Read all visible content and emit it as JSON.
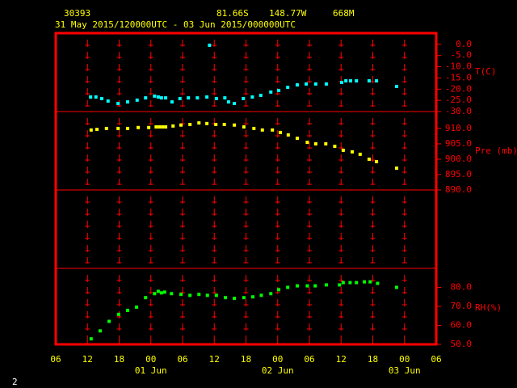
{
  "header": {
    "station": "30393",
    "lat": "81.66S",
    "lon": "148.77W",
    "elev": "668M",
    "period": "31 May 2015/120000UTC - 03 Jun 2015/000000UTC"
  },
  "page_number": "2",
  "x_axis": {
    "xlim": [
      6,
      78
    ],
    "xticks": [
      {
        "value": 6,
        "label": "06"
      },
      {
        "value": 12,
        "label": "12"
      },
      {
        "value": 18,
        "label": "18"
      },
      {
        "value": 24,
        "label": "00"
      },
      {
        "value": 30,
        "label": "06"
      },
      {
        "value": 36,
        "label": "12"
      },
      {
        "value": 42,
        "label": "18"
      },
      {
        "value": 48,
        "label": "00"
      },
      {
        "value": 54,
        "label": "06"
      },
      {
        "value": 60,
        "label": "12"
      },
      {
        "value": 66,
        "label": "18"
      },
      {
        "value": 72,
        "label": "00"
      },
      {
        "value": 78,
        "label": "06"
      }
    ],
    "day_ticks": [
      {
        "value": 24,
        "label": "01 Jun"
      },
      {
        "value": 48,
        "label": "02 Jun"
      },
      {
        "value": 72,
        "label": "03 Jun"
      }
    ]
  },
  "chart_data": [
    {
      "type": "scatter",
      "ylabel": "T(C)",
      "color": "#00ffff",
      "x": [
        12.6,
        13.6,
        14.7,
        15.9,
        17.8,
        19.6,
        21.4,
        23.0,
        24.7,
        25.4,
        26.0,
        26.8,
        28.0,
        29.5,
        31.1,
        32.8,
        34.6,
        35.1,
        36.4,
        38.0,
        38.7,
        39.8,
        41.5,
        43.2,
        44.8,
        46.7,
        48.2,
        49.9,
        51.7,
        53.4,
        55.2,
        57.2,
        60.1,
        60.9,
        61.8,
        62.9,
        65.3,
        66.7,
        70.5
      ],
      "values": [
        -23.5,
        -23.5,
        -24.2,
        -25.3,
        -26.4,
        -25.7,
        -24.9,
        -23.9,
        -23.1,
        -23.5,
        -23.9,
        -23.9,
        -25.7,
        -24.2,
        -23.9,
        -23.9,
        -23.5,
        -0.4,
        -24.2,
        -23.9,
        -25.7,
        -26.4,
        -24.2,
        -23.5,
        -22.8,
        -21.3,
        -20.6,
        -19.2,
        -18.1,
        -17.7,
        -17.7,
        -17.7,
        -17.0,
        -16.3,
        -16.3,
        -16.3,
        -16.3,
        -16.3,
        -18.8
      ],
      "ylim": [
        -30,
        5
      ],
      "yticks": [
        {
          "value": 0,
          "label": "0.0"
        },
        {
          "value": -5,
          "label": "-5.0"
        },
        {
          "value": -10,
          "label": "-10.0"
        },
        {
          "value": -15,
          "label": "-15.0"
        },
        {
          "value": -20,
          "label": "-20.0"
        },
        {
          "value": -25,
          "label": "-25.0"
        },
        {
          "value": -30,
          "label": "-30.0"
        }
      ]
    },
    {
      "type": "scatter",
      "ylabel": "Pre (mb)",
      "color": "#ffff00",
      "x": [
        12.7,
        13.8,
        15.6,
        17.8,
        19.6,
        21.6,
        23.6,
        25.0,
        25.6,
        26.2,
        26.8,
        28.2,
        29.7,
        31.4,
        33.1,
        34.6,
        36.3,
        37.9,
        39.8,
        41.6,
        43.5,
        45.1,
        47.0,
        48.5,
        50.0,
        51.7,
        53.6,
        55.2,
        57.1,
        58.8,
        60.4,
        62.1,
        63.6,
        65.3,
        66.7,
        70.5
      ],
      "values": [
        909.5,
        909.7,
        910.0,
        910.0,
        910.0,
        910.3,
        910.3,
        910.5,
        910.5,
        910.5,
        910.5,
        910.8,
        911.1,
        911.3,
        911.8,
        911.6,
        911.3,
        911.3,
        911.1,
        910.5,
        910.0,
        909.5,
        909.5,
        908.7,
        907.9,
        906.8,
        905.5,
        905.0,
        905.0,
        904.2,
        902.9,
        902.4,
        901.6,
        900.0,
        899.2,
        897.1
      ],
      "ylim": [
        890,
        915.5
      ],
      "yticks": [
        {
          "value": 910,
          "label": "910.0"
        },
        {
          "value": 905,
          "label": "905.0"
        },
        {
          "value": 900,
          "label": "900.0"
        },
        {
          "value": 895,
          "label": "895.0"
        },
        {
          "value": 890,
          "label": "890.0"
        }
      ]
    },
    {
      "type": "scatter",
      "ylabel": "RH(%)",
      "color": "#00ff00",
      "x": [
        12.7,
        14.4,
        16.1,
        17.9,
        19.6,
        21.3,
        23.0,
        24.7,
        25.4,
        26.0,
        26.6,
        27.9,
        29.7,
        31.4,
        33.1,
        34.7,
        36.4,
        38.1,
        39.8,
        41.6,
        43.3,
        44.9,
        46.7,
        48.2,
        49.9,
        51.7,
        53.6,
        55.1,
        57.2,
        59.7,
        60.4,
        61.7,
        62.9,
        64.4,
        65.5,
        66.9,
        70.5
      ],
      "values": [
        52.9,
        57.1,
        62.1,
        65.8,
        67.9,
        69.6,
        74.6,
        76.7,
        77.9,
        77.1,
        77.5,
        76.7,
        76.3,
        75.8,
        76.3,
        75.8,
        75.8,
        74.6,
        74.2,
        74.6,
        75.0,
        75.8,
        76.7,
        78.8,
        80.0,
        80.8,
        80.8,
        80.8,
        81.3,
        81.3,
        82.5,
        82.5,
        82.5,
        82.9,
        82.9,
        82.1,
        80.0
      ],
      "ylim": [
        50,
        90
      ],
      "yticks": [
        {
          "value": 80,
          "label": "80.0"
        },
        {
          "value": 70,
          "label": "70.0"
        },
        {
          "value": 60,
          "label": "60.0"
        },
        {
          "value": 50,
          "label": "50.0"
        }
      ]
    }
  ]
}
